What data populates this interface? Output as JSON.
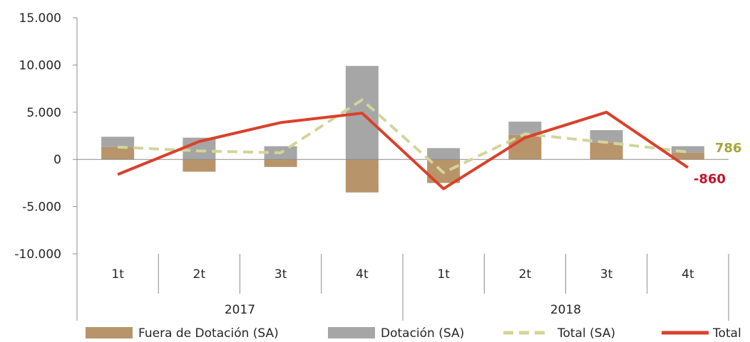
{
  "chart_data": {
    "type": "bar",
    "categories": [
      "1t",
      "2t",
      "3t",
      "4t",
      "1t",
      "2t",
      "3t",
      "4t"
    ],
    "groups": [
      {
        "label": "2017",
        "span": 4
      },
      {
        "label": "2018",
        "span": 4
      }
    ],
    "y_ticks": [
      "15.000",
      "10.000",
      "5.000",
      "0",
      "-5.000",
      "-10.000"
    ],
    "y_tick_values": [
      15000,
      10000,
      5000,
      0,
      -5000,
      -10000
    ],
    "ylim": [
      -10000,
      15000
    ],
    "grid": false,
    "legend_position": "bottom",
    "series": [
      {
        "name": "Fuera de Dotación (SA)",
        "kind": "bar",
        "color": "#b8946a",
        "values": [
          1300,
          -1300,
          -800,
          -3500,
          -2500,
          2600,
          1800,
          700
        ]
      },
      {
        "name": "Dotación (SA)",
        "kind": "bar",
        "color": "#a6a6a6",
        "values": [
          1100,
          2300,
          1400,
          9900,
          1200,
          1400,
          1300,
          700
        ]
      },
      {
        "name": "Total  (SA)",
        "kind": "line",
        "style": "dashed",
        "color": "#d4d49a",
        "values": [
          1300,
          900,
          700,
          6300,
          -1400,
          2700,
          1800,
          786
        ]
      },
      {
        "name": "Total",
        "kind": "line",
        "style": "solid",
        "color": "#d9412b",
        "values": [
          -1600,
          1900,
          3900,
          4900,
          -3100,
          2300,
          5000,
          -860
        ]
      }
    ],
    "end_labels": [
      {
        "text": "786",
        "color": "#a5a53a"
      },
      {
        "text": "-860",
        "color": "#c0142a"
      }
    ]
  }
}
